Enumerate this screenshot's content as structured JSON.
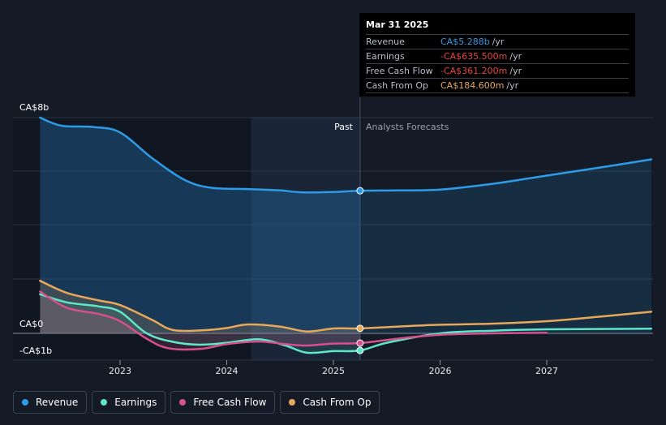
{
  "chart_data": {
    "type": "line",
    "y_top_label": "CA$8b",
    "y_zero_label": "CA$0",
    "y_bottom_label": "-CA$1b",
    "ylim": [
      -1,
      8
    ],
    "x_ticks": [
      "2023",
      "2024",
      "2025",
      "2026",
      "2027"
    ],
    "past_label": "Past",
    "forecast_label": "Analysts Forecasts",
    "series": [
      {
        "name": "Revenue",
        "color": "#2d9be6",
        "points": [
          [
            2022.25,
            8.0
          ],
          [
            2022.45,
            7.7
          ],
          [
            2022.75,
            7.65
          ],
          [
            2023.0,
            7.45
          ],
          [
            2023.3,
            6.5
          ],
          [
            2023.6,
            5.7
          ],
          [
            2023.85,
            5.4
          ],
          [
            2024.2,
            5.35
          ],
          [
            2024.5,
            5.3
          ],
          [
            2024.7,
            5.23
          ],
          [
            2025.0,
            5.24
          ],
          [
            2025.25,
            5.288
          ],
          [
            2025.6,
            5.3
          ],
          [
            2026.0,
            5.33
          ],
          [
            2026.5,
            5.55
          ],
          [
            2027.0,
            5.85
          ],
          [
            2027.5,
            6.15
          ],
          [
            2027.98,
            6.45
          ]
        ]
      },
      {
        "name": "Earnings",
        "color": "#5ce8c8",
        "points": [
          [
            2022.25,
            1.45
          ],
          [
            2022.5,
            1.15
          ],
          [
            2022.8,
            1.0
          ],
          [
            2023.0,
            0.8
          ],
          [
            2023.25,
            0.0
          ],
          [
            2023.5,
            -0.32
          ],
          [
            2023.75,
            -0.42
          ],
          [
            2024.0,
            -0.35
          ],
          [
            2024.3,
            -0.22
          ],
          [
            2024.55,
            -0.45
          ],
          [
            2024.75,
            -0.72
          ],
          [
            2025.0,
            -0.66
          ],
          [
            2025.25,
            -0.6355
          ],
          [
            2025.5,
            -0.35
          ],
          [
            2026.0,
            0.0
          ],
          [
            2026.5,
            0.1
          ],
          [
            2027.0,
            0.15
          ],
          [
            2027.98,
            0.17
          ]
        ]
      },
      {
        "name": "Free Cash Flow",
        "color": "#d6508c",
        "points": [
          [
            2022.25,
            1.55
          ],
          [
            2022.5,
            0.95
          ],
          [
            2022.8,
            0.72
          ],
          [
            2023.0,
            0.45
          ],
          [
            2023.25,
            -0.2
          ],
          [
            2023.45,
            -0.55
          ],
          [
            2023.75,
            -0.58
          ],
          [
            2024.0,
            -0.4
          ],
          [
            2024.3,
            -0.3
          ],
          [
            2024.55,
            -0.4
          ],
          [
            2024.75,
            -0.45
          ],
          [
            2025.0,
            -0.38
          ],
          [
            2025.25,
            -0.3612
          ],
          [
            2025.6,
            -0.2
          ],
          [
            2026.0,
            -0.05
          ],
          [
            2026.5,
            0.0
          ],
          [
            2027.0,
            0.02
          ]
        ]
      },
      {
        "name": "Cash From Op",
        "color": "#e8a85a",
        "points": [
          [
            2022.25,
            1.95
          ],
          [
            2022.5,
            1.5
          ],
          [
            2022.8,
            1.22
          ],
          [
            2023.0,
            1.05
          ],
          [
            2023.3,
            0.5
          ],
          [
            2023.5,
            0.12
          ],
          [
            2023.8,
            0.12
          ],
          [
            2024.0,
            0.2
          ],
          [
            2024.2,
            0.33
          ],
          [
            2024.5,
            0.25
          ],
          [
            2024.75,
            0.07
          ],
          [
            2025.0,
            0.18
          ],
          [
            2025.25,
            0.1846
          ],
          [
            2025.6,
            0.25
          ],
          [
            2026.0,
            0.32
          ],
          [
            2026.5,
            0.36
          ],
          [
            2027.0,
            0.45
          ],
          [
            2027.5,
            0.62
          ],
          [
            2027.98,
            0.8
          ]
        ]
      }
    ],
    "marker_x": 2025.25,
    "grid": true,
    "legend_position": "bottom-left"
  },
  "tooltip": {
    "date": "Mar 31 2025",
    "rows": [
      {
        "label": "Revenue",
        "value": "CA$5.288b",
        "unit": "/yr",
        "color": "#2d9be6"
      },
      {
        "label": "Earnings",
        "value": "-CA$635.500m",
        "unit": "/yr",
        "color": "#e8443c"
      },
      {
        "label": "Free Cash Flow",
        "value": "-CA$361.200m",
        "unit": "/yr",
        "color": "#e8443c"
      },
      {
        "label": "Cash From Op",
        "value": "CA$184.600m",
        "unit": "/yr",
        "color": "#e8a85a"
      }
    ]
  },
  "legend": [
    {
      "label": "Revenue",
      "color": "#2d9be6"
    },
    {
      "label": "Earnings",
      "color": "#5ce8c8"
    },
    {
      "label": "Free Cash Flow",
      "color": "#d6508c"
    },
    {
      "label": "Cash From Op",
      "color": "#e8a85a"
    }
  ]
}
